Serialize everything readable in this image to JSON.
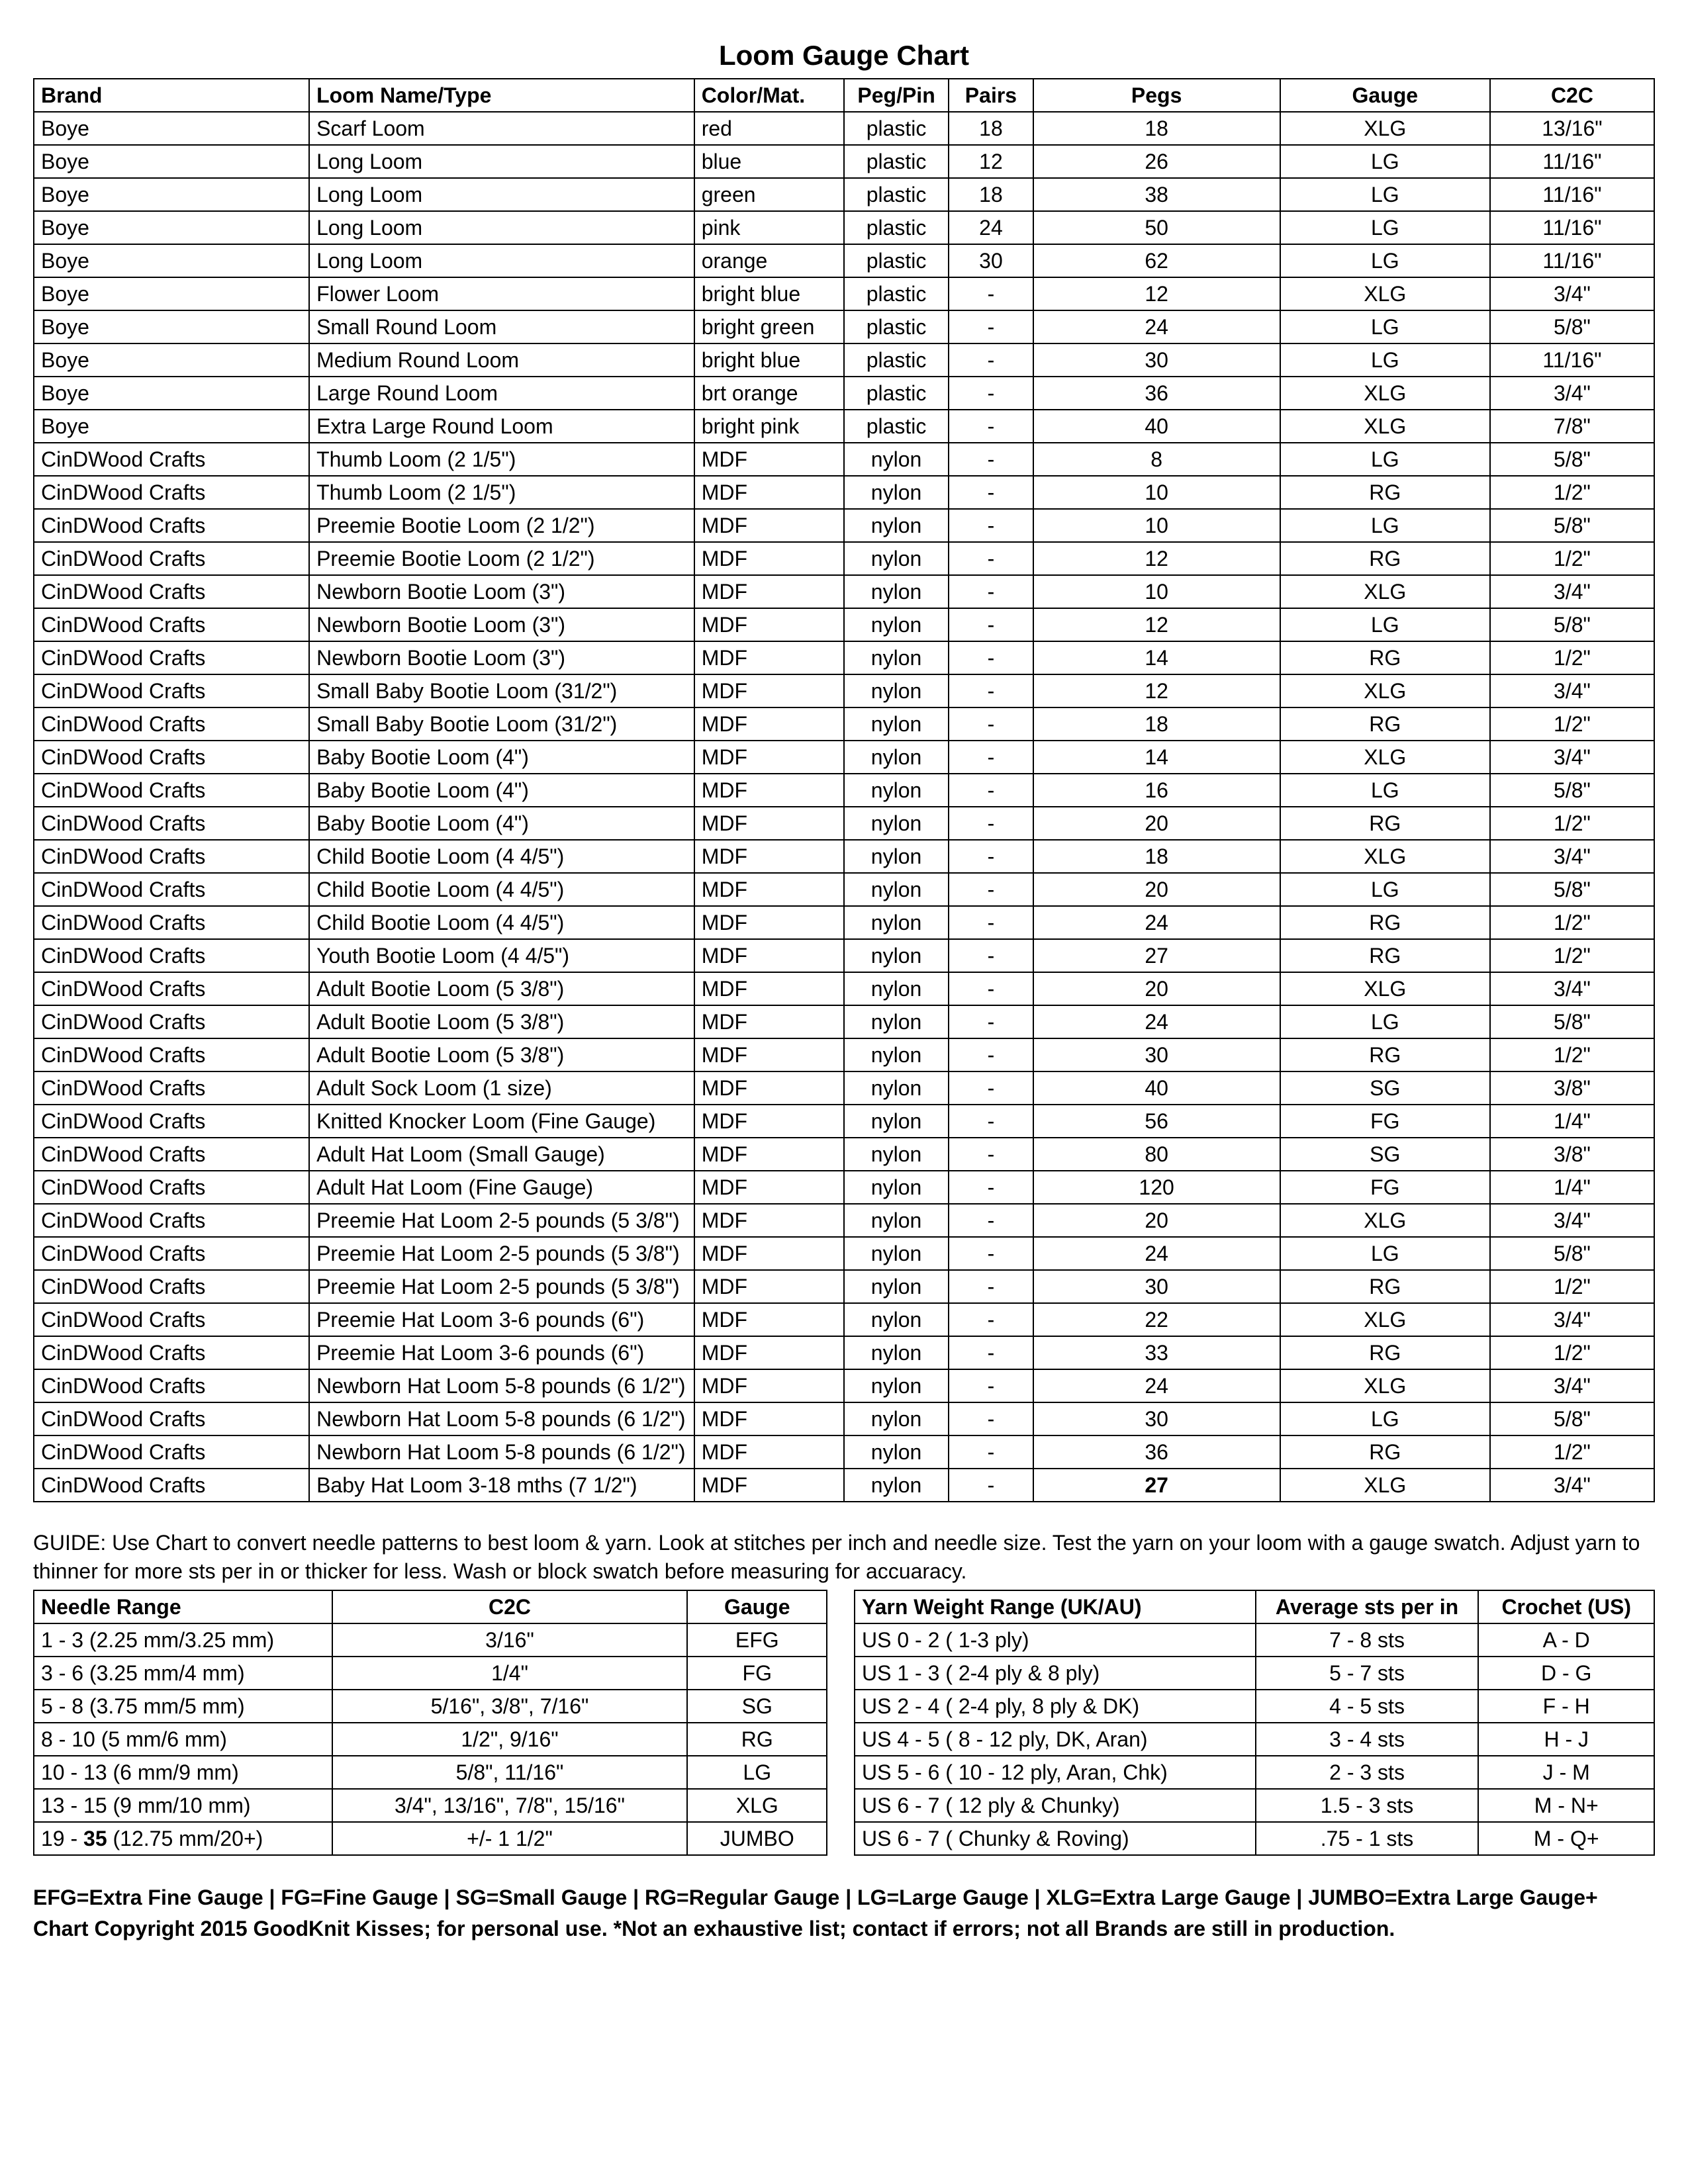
{
  "title": "Loom Gauge Chart",
  "main": {
    "headers": [
      "Brand",
      "Loom Name/Type",
      "Color/Mat.",
      "Peg/Pin",
      "Pairs",
      "Pegs",
      "Gauge",
      "C2C"
    ],
    "rows": [
      [
        "Boye",
        "Scarf Loom",
        "red",
        "plastic",
        "18",
        "18",
        "XLG",
        "13/16\""
      ],
      [
        "Boye",
        "Long Loom",
        "blue",
        "plastic",
        "12",
        "26",
        "LG",
        "11/16\""
      ],
      [
        "Boye",
        "Long Loom",
        "green",
        "plastic",
        "18",
        "38",
        "LG",
        "11/16\""
      ],
      [
        "Boye",
        "Long Loom",
        "pink",
        "plastic",
        "24",
        "50",
        "LG",
        "11/16\""
      ],
      [
        "Boye",
        "Long Loom",
        "orange",
        "plastic",
        "30",
        "62",
        "LG",
        "11/16\""
      ],
      [
        "Boye",
        "Flower Loom",
        "bright blue",
        "plastic",
        "-",
        "12",
        "XLG",
        "3/4\""
      ],
      [
        "Boye",
        "Small Round Loom",
        "bright green",
        "plastic",
        "-",
        "24",
        "LG",
        "5/8\""
      ],
      [
        "Boye",
        "Medium Round Loom",
        "bright blue",
        "plastic",
        "-",
        "30",
        "LG",
        "11/16\""
      ],
      [
        "Boye",
        "Large Round Loom",
        "brt orange",
        "plastic",
        "-",
        "36",
        "XLG",
        "3/4\""
      ],
      [
        "Boye",
        "Extra Large Round Loom",
        "bright pink",
        "plastic",
        "-",
        "40",
        "XLG",
        "7/8\""
      ],
      [
        "CinDWood Crafts",
        "Thumb Loom (2 1/5\")",
        "MDF",
        "nylon",
        "-",
        "8",
        "LG",
        "5/8\""
      ],
      [
        "CinDWood Crafts",
        "Thumb Loom (2 1/5\")",
        "MDF",
        "nylon",
        "-",
        "10",
        "RG",
        "1/2\""
      ],
      [
        "CinDWood Crafts",
        "Preemie Bootie Loom (2 1/2\")",
        "MDF",
        "nylon",
        "-",
        "10",
        "LG",
        "5/8\""
      ],
      [
        "CinDWood Crafts",
        "Preemie Bootie Loom (2 1/2\")",
        "MDF",
        "nylon",
        "-",
        "12",
        "RG",
        "1/2\""
      ],
      [
        "CinDWood Crafts",
        "Newborn Bootie Loom (3\")",
        "MDF",
        "nylon",
        "-",
        "10",
        "XLG",
        "3/4\""
      ],
      [
        "CinDWood Crafts",
        "Newborn Bootie Loom (3\")",
        "MDF",
        "nylon",
        "-",
        "12",
        "LG",
        "5/8\""
      ],
      [
        "CinDWood Crafts",
        "Newborn Bootie Loom (3\")",
        "MDF",
        "nylon",
        "-",
        "14",
        "RG",
        "1/2\""
      ],
      [
        "CinDWood Crafts",
        "Small Baby Bootie Loom (31/2\")",
        "MDF",
        "nylon",
        "-",
        "12",
        "XLG",
        "3/4\""
      ],
      [
        "CinDWood Crafts",
        "Small Baby Bootie Loom (31/2\")",
        "MDF",
        "nylon",
        "-",
        "18",
        "RG",
        "1/2\""
      ],
      [
        "CinDWood Crafts",
        "Baby Bootie Loom (4\")",
        "MDF",
        "nylon",
        "-",
        "14",
        "XLG",
        "3/4\""
      ],
      [
        "CinDWood Crafts",
        "Baby Bootie Loom (4\")",
        "MDF",
        "nylon",
        "-",
        "16",
        "LG",
        "5/8\""
      ],
      [
        "CinDWood Crafts",
        "Baby Bootie Loom (4\")",
        "MDF",
        "nylon",
        "-",
        "20",
        "RG",
        "1/2\""
      ],
      [
        "CinDWood Crafts",
        "Child Bootie Loom (4 4/5\")",
        "MDF",
        "nylon",
        "-",
        "18",
        "XLG",
        "3/4\""
      ],
      [
        "CinDWood Crafts",
        "Child Bootie Loom (4 4/5\")",
        "MDF",
        "nylon",
        "-",
        "20",
        "LG",
        "5/8\""
      ],
      [
        "CinDWood Crafts",
        "Child Bootie Loom (4 4/5\")",
        "MDF",
        "nylon",
        "-",
        "24",
        "RG",
        "1/2\""
      ],
      [
        "CinDWood Crafts",
        "Youth Bootie Loom (4 4/5\")",
        "MDF",
        "nylon",
        "-",
        "27",
        "RG",
        "1/2\""
      ],
      [
        "CinDWood Crafts",
        "Adult Bootie Loom (5 3/8\")",
        "MDF",
        "nylon",
        "-",
        "20",
        "XLG",
        "3/4\""
      ],
      [
        "CinDWood Crafts",
        "Adult Bootie Loom (5 3/8\")",
        "MDF",
        "nylon",
        "-",
        "24",
        "LG",
        "5/8\""
      ],
      [
        "CinDWood Crafts",
        "Adult Bootie Loom (5 3/8\")",
        "MDF",
        "nylon",
        "-",
        "30",
        "RG",
        "1/2\""
      ],
      [
        "CinDWood Crafts",
        "Adult Sock Loom (1 size)",
        "MDF",
        "nylon",
        "-",
        "40",
        "SG",
        "3/8\""
      ],
      [
        "CinDWood Crafts",
        "Knitted Knocker Loom (Fine Gauge)",
        "MDF",
        "nylon",
        "-",
        "56",
        "FG",
        "1/4\""
      ],
      [
        "CinDWood Crafts",
        "Adult Hat Loom (Small Gauge)",
        "MDF",
        "nylon",
        "-",
        "80",
        "SG",
        "3/8\""
      ],
      [
        "CinDWood Crafts",
        "Adult Hat Loom (Fine Gauge)",
        "MDF",
        "nylon",
        "-",
        "120",
        "FG",
        "1/4\""
      ],
      [
        "CinDWood Crafts",
        "Preemie Hat Loom 2-5 pounds (5 3/8\")",
        "MDF",
        "nylon",
        "-",
        "20",
        "XLG",
        "3/4\""
      ],
      [
        "CinDWood Crafts",
        "Preemie Hat Loom 2-5 pounds (5 3/8\")",
        "MDF",
        "nylon",
        "-",
        "24",
        "LG",
        "5/8\""
      ],
      [
        "CinDWood Crafts",
        "Preemie Hat Loom 2-5 pounds (5 3/8\")",
        "MDF",
        "nylon",
        "-",
        "30",
        "RG",
        "1/2\""
      ],
      [
        "CinDWood Crafts",
        "Preemie Hat Loom 3-6 pounds (6\")",
        "MDF",
        "nylon",
        "-",
        "22",
        "XLG",
        "3/4\""
      ],
      [
        "CinDWood Crafts",
        "Preemie Hat Loom 3-6 pounds (6\")",
        "MDF",
        "nylon",
        "-",
        "33",
        "RG",
        "1/2\""
      ],
      [
        "CinDWood Crafts",
        "Newborn Hat Loom 5-8 pounds (6 1/2\")",
        "MDF",
        "nylon",
        "-",
        "24",
        "XLG",
        "3/4\""
      ],
      [
        "CinDWood Crafts",
        "Newborn Hat Loom 5-8 pounds (6 1/2\")",
        "MDF",
        "nylon",
        "-",
        "30",
        "LG",
        "5/8\""
      ],
      [
        "CinDWood Crafts",
        "Newborn Hat Loom 5-8 pounds (6 1/2\")",
        "MDF",
        "nylon",
        "-",
        "36",
        "RG",
        "1/2\""
      ],
      [
        "CinDWood Crafts",
        "Baby Hat Loom 3-18 mths (7 1/2\")",
        "MDF",
        "nylon",
        "-",
        "27",
        "XLG",
        "3/4\""
      ]
    ],
    "bold_pegs_row": 41
  },
  "guide": "GUIDE: Use Chart to convert needle patterns to best loom & yarn.  Look at stitches per inch and needle size.  Test the yarn on your loom with a gauge swatch.  Adjust yarn to thinner for more sts per in or thicker for less. Wash or block swatch before measuring for accuaracy.",
  "needle": {
    "headers": [
      "Needle Range",
      "C2C",
      "Gauge"
    ],
    "rows": [
      [
        "1 - 3 (2.25 mm/3.25 mm)",
        "3/16\"",
        "EFG"
      ],
      [
        "3 - 6 (3.25 mm/4 mm)",
        "1/4\"",
        "FG"
      ],
      [
        "5 - 8 (3.75 mm/5 mm)",
        "5/16\",  3/8\", 7/16\"",
        "SG"
      ],
      [
        "8 - 10 (5 mm/6 mm)",
        "1/2\", 9/16\"",
        "RG"
      ],
      [
        "10 - 13 (6 mm/9 mm)",
        "5/8\", 11/16\"",
        "LG"
      ],
      [
        "13 - 15 (9 mm/10 mm)",
        "3/4\", 13/16\", 7/8\", 15/16\"",
        "XLG"
      ],
      [
        "19 - 35 (12.75 mm/20+)",
        "+/-  1  1/2\"",
        "JUMBO"
      ]
    ],
    "bold_35_row": 6
  },
  "yarn": {
    "headers": [
      "Yarn Weight Range (UK/AU)",
      "Average sts per in",
      "Crochet (US)"
    ],
    "rows": [
      [
        "US 0 - 2 ( 1-3 ply)",
        "7 - 8 sts",
        "A - D"
      ],
      [
        "US 1 - 3 ( 2-4 ply & 8 ply)",
        "5 - 7 sts",
        "D - G"
      ],
      [
        "US 2 - 4 ( 2-4 ply, 8 ply & DK)",
        "4 - 5 sts",
        "F - H"
      ],
      [
        "US 4 - 5 ( 8 - 12 ply, DK, Aran)",
        "3 - 4 sts",
        "H - J"
      ],
      [
        "US 5 - 6 ( 10 - 12 ply, Aran, Chk)",
        "2 - 3 sts",
        "J - M"
      ],
      [
        "US 6 - 7 ( 12 ply & Chunky)",
        "1.5 - 3 sts",
        "M - N+"
      ],
      [
        "US 6 - 7 ( Chunky & Roving)",
        ".75  - 1 sts",
        "M - Q+"
      ]
    ]
  },
  "footer_line1": "EFG=Extra Fine Gauge | FG=Fine Gauge | SG=Small Gauge | RG=Regular Gauge | LG=Large Gauge | XLG=Extra Large Gauge | JUMBO=Extra Large Gauge+",
  "footer_line2": "Chart Copyright 2015 GoodKnit Kisses; for personal use. *Not an exhaustive list; contact if errors; not all Brands are still in production."
}
